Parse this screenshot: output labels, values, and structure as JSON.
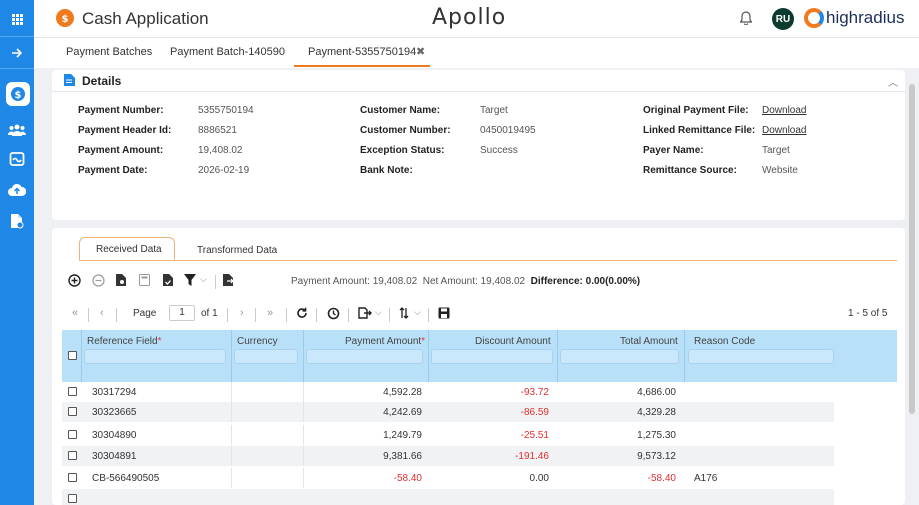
{
  "header": {
    "app_title": "Cash Application",
    "center_brand": "Apollo",
    "avatar_initials": "RU",
    "company_logo_text": "highradius"
  },
  "tabs": [
    {
      "label": "Payment Batches"
    },
    {
      "label": "Payment Batch-140590"
    },
    {
      "label": "Payment-5355750194",
      "active": true,
      "close": "✖"
    }
  ],
  "details": {
    "title": "Details",
    "col1": [
      {
        "label": "Payment Number:",
        "value": "5355750194"
      },
      {
        "label": "Payment Header Id:",
        "value": "8886521"
      },
      {
        "label": "Payment Amount:",
        "value": "19,408.02"
      },
      {
        "label": "Payment Date:",
        "value": "2026-02-19"
      }
    ],
    "col2": [
      {
        "label": "Customer Name:",
        "value": "Target"
      },
      {
        "label": "Customer Number:",
        "value": "0450019495"
      },
      {
        "label": "Exception Status:",
        "value": "Success"
      },
      {
        "label": "Bank Note:",
        "value": ""
      }
    ],
    "col3": [
      {
        "label": "Original Payment File:",
        "value": "Download"
      },
      {
        "label": "Linked Remittance File:",
        "value": "Download"
      },
      {
        "label": "Payer Name:",
        "value": "Target"
      },
      {
        "label": "Remittance Source:",
        "value": "Website"
      }
    ]
  },
  "subtabs": [
    {
      "label": "Received Data",
      "active": true
    },
    {
      "label": "Transformed Data"
    }
  ],
  "summary": {
    "payment_amount": "Payment Amount: 19,408.02",
    "net_amount": "Net Amount: 19,408.02",
    "difference": "Difference: 0.00(0.00%)"
  },
  "pager": {
    "page_label": "Page",
    "page_value": "1",
    "of_label": "of 1",
    "range": "1 - 5 of 5"
  },
  "table": {
    "columns": [
      "Reference Field",
      "Currency",
      "Payment Amount",
      "Discount Amount",
      "Total Amount",
      "Reason Code"
    ],
    "required_marker": "*",
    "rows": [
      {
        "reference": "30317294",
        "currency": "",
        "payment": "4,592.28",
        "discount": "-93.72",
        "total": "4,686.00",
        "reason": ""
      },
      {
        "reference": "30323665",
        "currency": "",
        "payment": "4,242.69",
        "discount": "-86.59",
        "total": "4,329.28",
        "reason": ""
      },
      {
        "reference": "30304890",
        "currency": "",
        "payment": "1,249.79",
        "discount": "-25.51",
        "total": "1,275.30",
        "reason": ""
      },
      {
        "reference": "30304891",
        "currency": "",
        "payment": "9,381.66",
        "discount": "-191.46",
        "total": "9,573.12",
        "reason": ""
      },
      {
        "reference": "CB-566490505",
        "currency": "",
        "payment": "-58.40",
        "discount": "0.00",
        "total": "-58.40",
        "reason": "A176"
      }
    ]
  },
  "colors": {
    "sidebar": "#1f87e5",
    "accent": "#f07a1e",
    "table_header": "#b8e0f8",
    "negative": "#e03030"
  }
}
